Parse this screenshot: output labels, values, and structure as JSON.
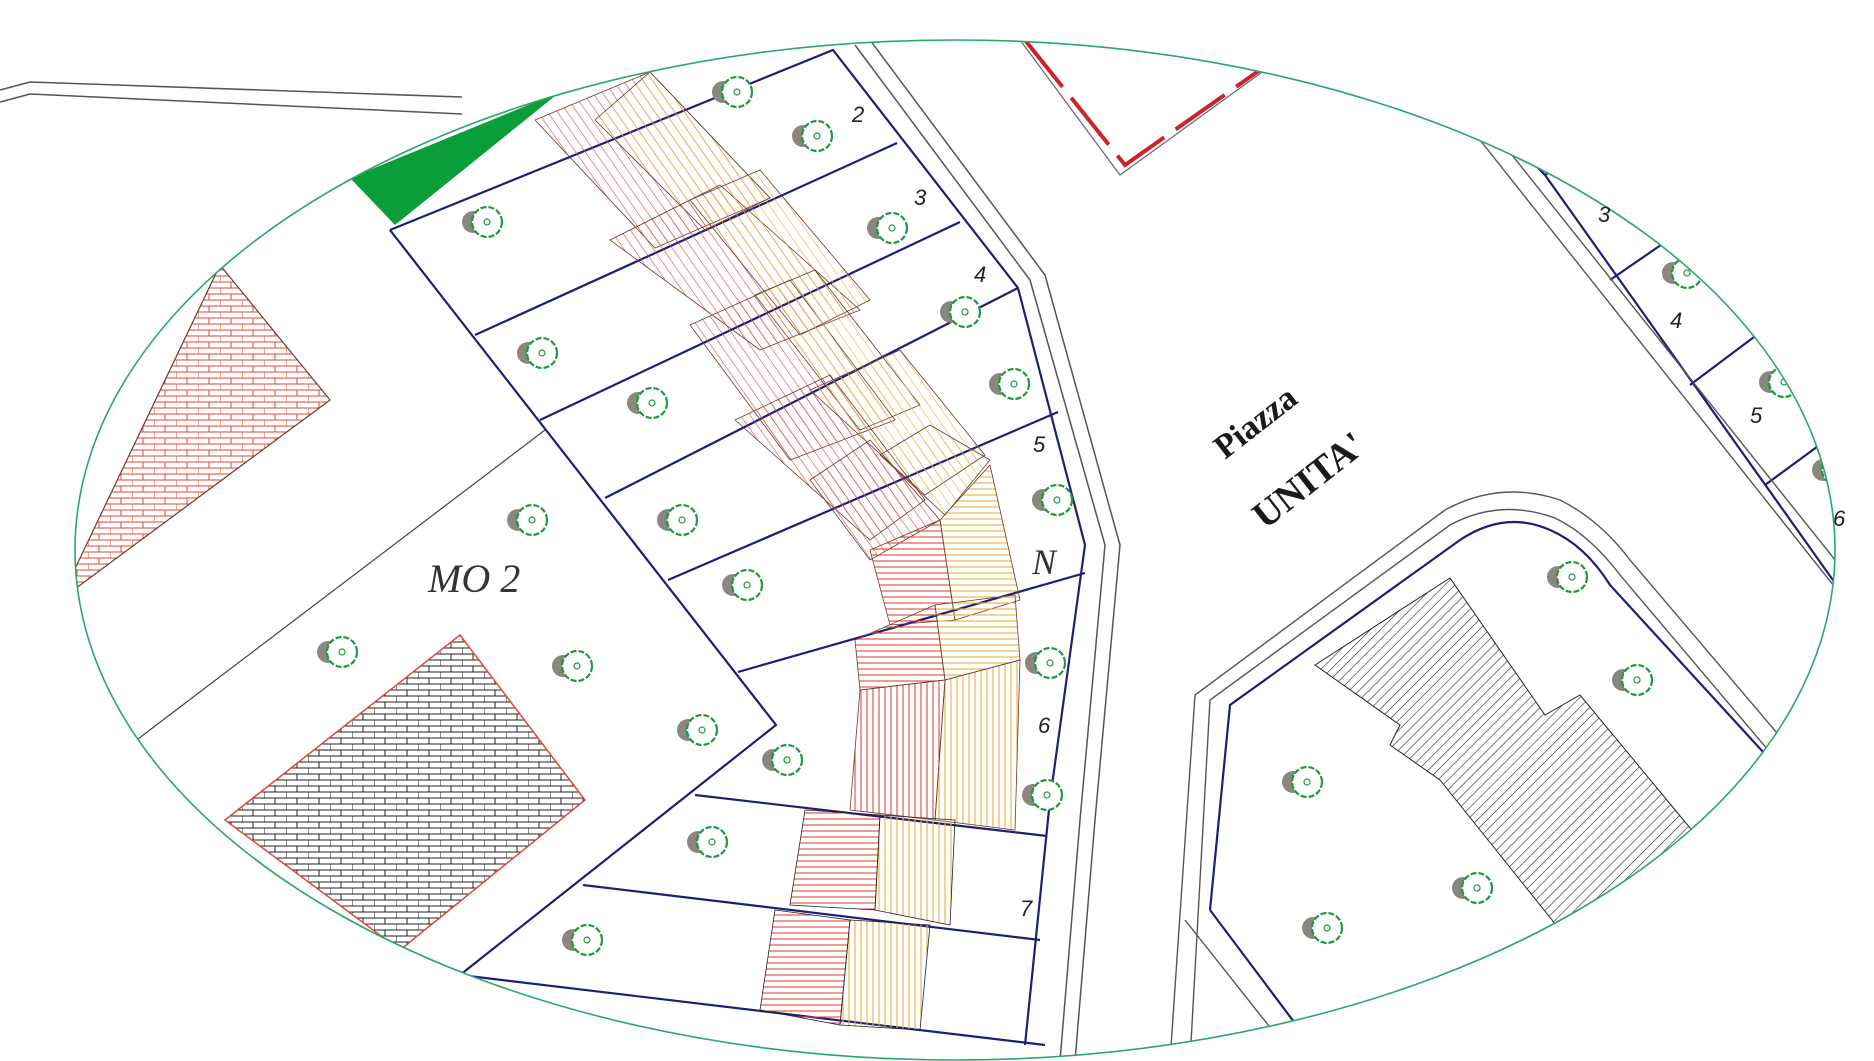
{
  "map": {
    "square": {
      "line1": "Piazza",
      "line2": "UNITA'"
    },
    "zone_label": "MO 2",
    "north_label": "N",
    "plots_left": [
      "2",
      "3",
      "4",
      "5",
      "6",
      "7"
    ],
    "plots_right": [
      "3",
      "4",
      "5",
      "6"
    ]
  },
  "colors": {
    "frame": "#2aa86a",
    "lot_line": "#1c1f7a",
    "road": "#555555",
    "green_area": "#0a9e3a",
    "red_boundary": "#d0202a",
    "hatch_red": "#e2473b",
    "hatch_yellow": "#e8b23a",
    "tree": "#1a9a3a",
    "tree_shadow": "#8b8680"
  }
}
